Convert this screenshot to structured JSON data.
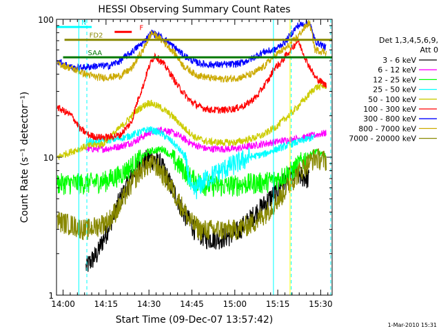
{
  "chart_data": {
    "type": "line",
    "title": "HESSI Observing Summary Count Rates",
    "xlabel": "Start Time (09-Dec-07 13:57:42)",
    "ylabel": "Count Rate (s⁻¹ detector⁻¹)",
    "yscale": "log",
    "ylim": [
      1,
      100
    ],
    "xlim_minutes": [
      -2.3,
      94
    ],
    "x_ticks": [
      {
        "m": 0,
        "label": "14:00"
      },
      {
        "m": 15,
        "label": "14:15"
      },
      {
        "m": 30,
        "label": "14:30"
      },
      {
        "m": 45,
        "label": "14:45"
      },
      {
        "m": 60,
        "label": "15:00"
      },
      {
        "m": 75,
        "label": "15:15"
      },
      {
        "m": 90,
        "label": "15:30"
      }
    ],
    "y_ticks": [
      {
        "v": 1,
        "label": "1"
      },
      {
        "v": 10,
        "label": "10"
      },
      {
        "v": 100,
        "label": "100"
      }
    ],
    "legend_header": [
      "Det 1,3,4,5,6,9,",
      "Att 0"
    ],
    "series": [
      {
        "name": "3 - 6 keV",
        "color": "#000000",
        "x": [
          8,
          12,
          15,
          18,
          22,
          26,
          30,
          34,
          38,
          42,
          46,
          50,
          55,
          60,
          65,
          70,
          74,
          78,
          82,
          86
        ],
        "y": [
          1.6,
          2.0,
          2.8,
          4.0,
          6.0,
          8.5,
          10,
          9,
          6,
          4,
          3,
          2.6,
          2.6,
          2.8,
          3.5,
          4.5,
          5.5,
          7,
          7.5,
          7
        ]
      },
      {
        "name": "6 - 12 keV",
        "color": "#ff00ff",
        "x": [
          8,
          15,
          20,
          25,
          30,
          35,
          40,
          45,
          50,
          55,
          60,
          65,
          70,
          75,
          80,
          85,
          88,
          92
        ],
        "y": [
          11.5,
          11.5,
          12,
          13,
          15,
          16,
          14.5,
          12.5,
          11.5,
          11.5,
          11.5,
          12,
          12.5,
          13,
          13.5,
          14,
          14.5,
          15
        ]
      },
      {
        "name": "12 - 25 keV",
        "color": "#00ff00",
        "x": [
          -2,
          8,
          15,
          20,
          25,
          30,
          35,
          40,
          45,
          50,
          55,
          60,
          65,
          70,
          75,
          80,
          85,
          88,
          92
        ],
        "y": [
          6.5,
          6.5,
          6.8,
          7.5,
          9,
          11,
          11.5,
          9,
          7,
          6.3,
          6.2,
          6.3,
          6.5,
          6.6,
          7,
          8,
          10,
          11,
          10
        ]
      },
      {
        "name": "25 - 50 keV",
        "color": "#00ffff",
        "x": [
          8,
          12,
          18,
          22,
          26,
          30,
          34,
          38,
          42,
          45,
          50,
          55,
          60,
          65,
          70,
          75,
          80,
          85,
          88
        ],
        "y": [
          13,
          13,
          13.5,
          14,
          15,
          16,
          15,
          13,
          10.5,
          5.5,
          7,
          8,
          9,
          10,
          10.5,
          11.5,
          12.5,
          13.5,
          14
        ]
      },
      {
        "name": "50 - 100 keV",
        "color": "#cccc00",
        "x": [
          -2,
          8,
          14,
          18,
          22,
          26,
          30,
          34,
          38,
          42,
          46,
          50,
          55,
          60,
          65,
          70,
          75,
          80,
          85,
          88,
          92
        ],
        "y": [
          10,
          12,
          12.5,
          15,
          18,
          22,
          25,
          23,
          20,
          16.5,
          14,
          13,
          12.8,
          12.8,
          13.5,
          14.5,
          17,
          21,
          27,
          32,
          33
        ]
      },
      {
        "name": "100 - 300 keV",
        "color": "#ff0000",
        "x": [
          -2,
          3,
          6,
          9,
          12,
          16,
          20,
          24,
          28,
          30,
          32,
          36,
          40,
          44,
          48,
          52,
          56,
          60,
          64,
          68,
          72,
          74,
          76,
          80,
          82,
          85,
          88,
          92
        ],
        "y": [
          23,
          20,
          16,
          14.5,
          14,
          14,
          14.5,
          18,
          33,
          45,
          55,
          45,
          33,
          26,
          23,
          22,
          22,
          22.5,
          24,
          28,
          37,
          45,
          48,
          62,
          70,
          50,
          38,
          33
        ]
      },
      {
        "name": "300 - 800 keV",
        "color": "#0000ff",
        "x": [
          -2,
          4,
          8,
          12,
          16,
          20,
          24,
          28,
          31,
          34,
          38,
          42,
          46,
          50,
          54,
          58,
          62,
          66,
          70,
          74,
          78,
          82,
          86,
          88,
          92
        ],
        "y": [
          50,
          44,
          45,
          46,
          46,
          50,
          58,
          68,
          80,
          75,
          65,
          55,
          49,
          47,
          47,
          47,
          48,
          52,
          58,
          60,
          70,
          90,
          95,
          70,
          62
        ]
      },
      {
        "name": "800 - 7000 keV",
        "color": "#ccaa00",
        "x": [
          -2,
          8,
          12,
          16,
          20,
          24,
          28,
          31,
          34,
          38,
          42,
          46,
          50,
          54,
          58,
          62,
          66,
          70,
          74,
          78,
          82,
          86,
          88,
          92
        ],
        "y": [
          48,
          40,
          38,
          38,
          39,
          44,
          60,
          80,
          72,
          60,
          46,
          40,
          38,
          37,
          37,
          38,
          40,
          45,
          55,
          62,
          75,
          95,
          60,
          58
        ]
      },
      {
        "name": "7000 - 20000 keV",
        "color": "#888800",
        "x": [
          -2,
          8,
          12,
          16,
          20,
          24,
          28,
          32,
          36,
          40,
          44,
          48,
          52,
          56,
          60,
          64,
          68,
          72,
          76,
          80,
          84,
          88,
          92
        ],
        "y": [
          3.5,
          3.0,
          3.2,
          3.5,
          4.5,
          6.5,
          8.5,
          9,
          7,
          5,
          3.5,
          3,
          3,
          3,
          3,
          3.2,
          3.5,
          4.2,
          5.2,
          6.8,
          8.5,
          10,
          9.5
        ]
      }
    ],
    "flag_lines": [
      {
        "label": "N",
        "color": "#00ffff",
        "x_start": -2.3,
        "x_end": 10,
        "y": 88
      },
      {
        "label": "FD2",
        "color": "#888800",
        "x_start": 0.5,
        "x_end": 94,
        "y": 71
      },
      {
        "label": "SAA",
        "color": "#007700",
        "x_start": 0,
        "x_end": 94,
        "y": 53
      },
      {
        "label": "F",
        "color": "#ff0000",
        "x_start": 18,
        "x_end": 24,
        "y": 81
      }
    ],
    "vertical_markers": [
      {
        "m": 5.5,
        "color": "#00ffff",
        "style": "solid"
      },
      {
        "m": 8.3,
        "color": "#00ffff",
        "style": "dashed"
      },
      {
        "m": 73.5,
        "color": "#00ffff",
        "style": "solid"
      },
      {
        "m": 93.5,
        "color": "#00ffff",
        "style": "dashed"
      },
      {
        "m": 79.7,
        "color": "#00ffff",
        "style": "dashed"
      },
      {
        "m": 79.3,
        "color": "#ffff00",
        "style": "solid"
      }
    ],
    "flag_text": "N",
    "footer": "1-Mar-2010 15:31",
    "grid": false,
    "legend_position": "right"
  }
}
